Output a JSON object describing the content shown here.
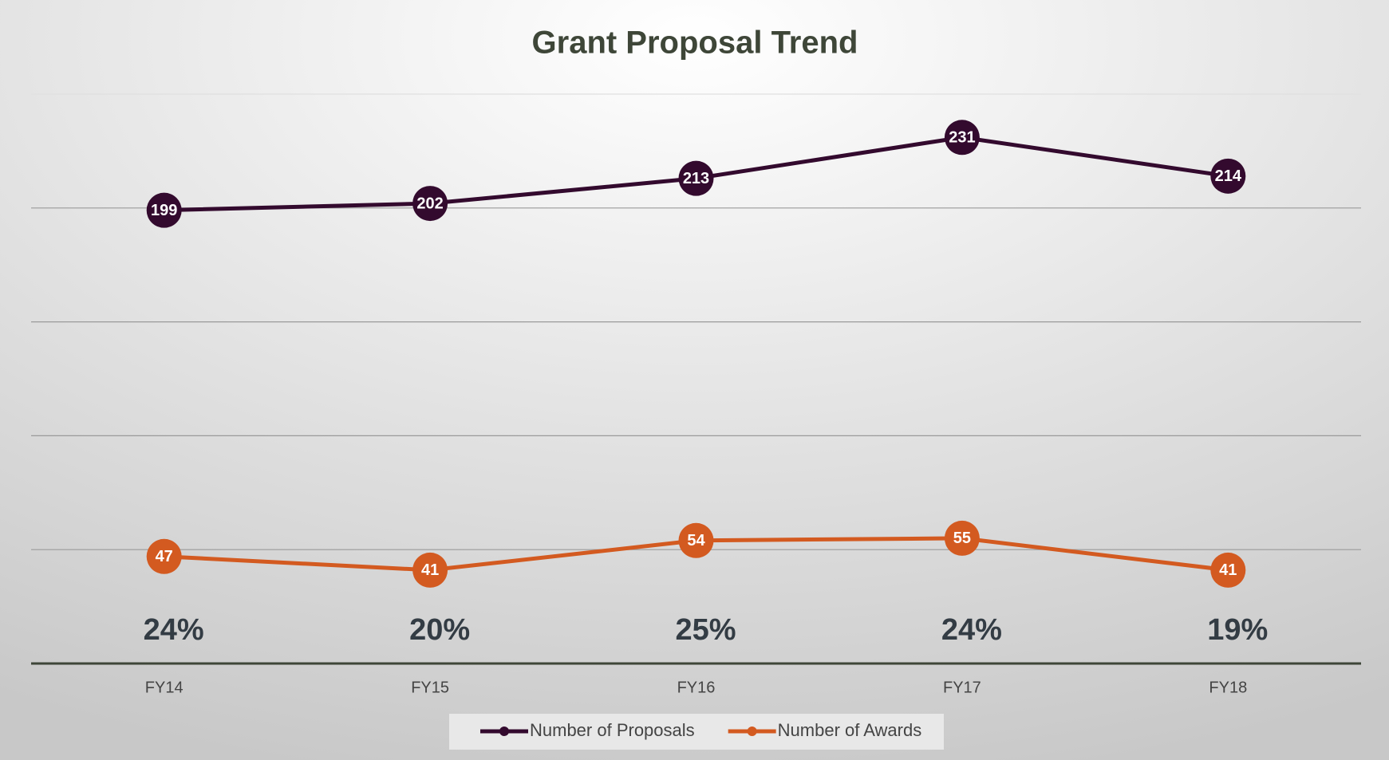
{
  "chart_data": {
    "type": "line",
    "title": "Grant Proposal Trend",
    "categories": [
      "FY14",
      "FY15",
      "FY16",
      "FY17",
      "FY18"
    ],
    "series": [
      {
        "name": "Number of Proposals",
        "color": "#330a2e",
        "values": [
          199,
          202,
          213,
          231,
          214
        ]
      },
      {
        "name": "Number of Awards",
        "color": "#d35a20",
        "values": [
          47,
          41,
          54,
          55,
          41
        ]
      }
    ],
    "annotations": [
      "24%",
      "20%",
      "25%",
      "24%",
      "19%"
    ],
    "ylim": [
      0,
      250
    ],
    "yticks": [
      0,
      50,
      100,
      150,
      200,
      250
    ],
    "grid": true,
    "legend": "bottom"
  }
}
